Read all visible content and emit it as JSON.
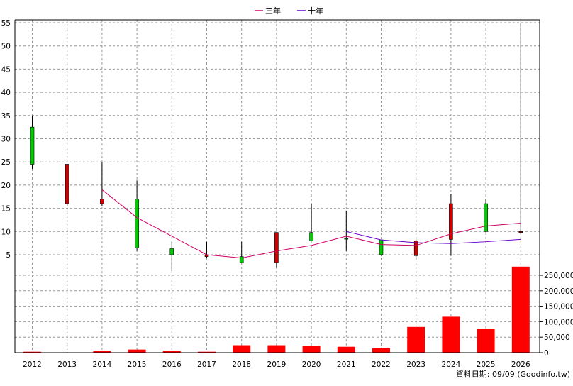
{
  "chart_data": {
    "type": "candlestick",
    "legend": [
      {
        "name": "三年",
        "color": "#cc0066"
      },
      {
        "name": "十年",
        "color": "#6600cc"
      }
    ],
    "categories": [
      "2012",
      "2013",
      "2014",
      "2015",
      "2016",
      "2017",
      "2018",
      "2019",
      "2020",
      "2021",
      "2022",
      "2023",
      "2024",
      "2025",
      "2026"
    ],
    "ohlc": [
      {
        "year": "2012",
        "open": 24.5,
        "high": 35,
        "low": 23.5,
        "close": 32.5
      },
      {
        "year": "2013",
        "open": 24.5,
        "high": 24.5,
        "low": 15.5,
        "close": 16
      },
      {
        "year": "2014",
        "open": 17,
        "high": 25,
        "low": 15.5,
        "close": 16
      },
      {
        "year": "2015",
        "open": 6.5,
        "high": 21,
        "low": 5.8,
        "close": 17
      },
      {
        "year": "2016",
        "open": 5,
        "high": 7.8,
        "low": 1.5,
        "close": 6.3
      },
      {
        "year": "2017",
        "open": 5,
        "high": 7.8,
        "low": 4.3,
        "close": 4.6
      },
      {
        "year": "2018",
        "open": 3.3,
        "high": 7.8,
        "low": 3.2,
        "close": 4.6
      },
      {
        "year": "2019",
        "open": 9.8,
        "high": 9.8,
        "low": 2.3,
        "close": 3.3
      },
      {
        "year": "2020",
        "open": 8,
        "high": 16,
        "low": 8,
        "close": 9.8
      },
      {
        "year": "2021",
        "open": 8.5,
        "high": 14.5,
        "low": 5.8,
        "close": 8.5
      },
      {
        "year": "2022",
        "open": 5,
        "high": 8.2,
        "low": 4.8,
        "close": 8.2
      },
      {
        "year": "2023",
        "open": 8,
        "high": 8.3,
        "low": 4,
        "close": 4.8
      },
      {
        "year": "2024",
        "open": 16,
        "high": 18,
        "low": 4.8,
        "close": 8.3
      },
      {
        "year": "2025",
        "open": 10,
        "high": 17,
        "low": 9.8,
        "close": 16
      },
      {
        "year": "2026",
        "open": 10,
        "high": 55,
        "low": 9.5,
        "close": 9.8
      }
    ],
    "ma3": {
      "name": "三年",
      "x": [
        "2014",
        "2015",
        "2016",
        "2017",
        "2018",
        "2019",
        "2020",
        "2021",
        "2022",
        "2023",
        "2024",
        "2025",
        "2026"
      ],
      "values": [
        19,
        13,
        9,
        5,
        4.3,
        5.8,
        7,
        9,
        7.2,
        7,
        9.5,
        11.2,
        11.8
      ]
    },
    "ma10": {
      "name": "十年",
      "x": [
        "2021",
        "2022",
        "2023",
        "2024",
        "2025",
        "2026"
      ],
      "values": [
        10,
        8.2,
        7.6,
        7.4,
        7.8,
        8.3
      ]
    },
    "volume": {
      "x": [
        "2012",
        "2013",
        "2014",
        "2015",
        "2016",
        "2017",
        "2018",
        "2019",
        "2020",
        "2021",
        "2022",
        "2023",
        "2024",
        "2025",
        "2026"
      ],
      "values": [
        3000,
        0,
        6000,
        10000,
        6000,
        3000,
        24000,
        24000,
        22000,
        19000,
        14000,
        83000,
        116000,
        77000,
        278000
      ]
    },
    "price_axis": {
      "min": 0,
      "max": 55,
      "ticks": [
        5,
        10,
        15,
        20,
        25,
        30,
        35,
        40,
        45,
        50,
        55
      ]
    },
    "volume_axis": {
      "min": 0,
      "max": 280000,
      "ticks": [
        0,
        50000,
        100000,
        150000,
        200000,
        250000
      ],
      "tick_labels": [
        "0",
        "50,000",
        "100,000",
        "150,000",
        "200,000",
        "250,000"
      ]
    },
    "grid": true,
    "legend_position": "top-center"
  },
  "source_label": "資料日期: 09/09  (Goodinfo.tw)",
  "colors": {
    "up": "#ff0000",
    "down": "#00cc00",
    "candle_up_fill": "#cc0000",
    "candle_down_fill": "#00cc00",
    "grid": "#999999"
  }
}
